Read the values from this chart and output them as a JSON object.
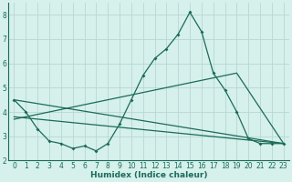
{
  "title": "",
  "xlabel": "Humidex (Indice chaleur)",
  "bg_color": "#d6f0eb",
  "grid_color": "#b8d8d2",
  "line_color": "#1a6b5a",
  "xlim_min": -0.5,
  "xlim_max": 23.5,
  "ylim_min": 2.0,
  "ylim_max": 8.5,
  "yticks": [
    2,
    3,
    4,
    5,
    6,
    7,
    8
  ],
  "xticks": [
    0,
    1,
    2,
    3,
    4,
    5,
    6,
    7,
    8,
    9,
    10,
    11,
    12,
    13,
    14,
    15,
    16,
    17,
    18,
    19,
    20,
    21,
    22,
    23
  ],
  "line1_x": [
    0,
    1,
    2,
    3,
    4,
    5,
    6,
    7,
    8,
    9,
    10,
    11,
    12,
    13,
    14,
    15,
    16,
    17,
    18,
    19,
    20,
    21,
    22,
    23
  ],
  "line1_y": [
    4.5,
    4.0,
    3.3,
    2.8,
    2.7,
    2.5,
    2.6,
    2.4,
    2.7,
    3.5,
    4.5,
    5.5,
    6.2,
    6.6,
    7.2,
    8.1,
    7.3,
    5.6,
    4.9,
    4.0,
    2.9,
    2.7,
    2.7,
    2.7
  ],
  "line2_x": [
    0,
    23
  ],
  "line2_y": [
    4.5,
    2.7
  ],
  "line3_x": [
    0,
    23
  ],
  "line3_y": [
    3.8,
    2.7
  ],
  "line4_x": [
    0,
    19,
    23
  ],
  "line4_y": [
    3.7,
    5.6,
    2.7
  ],
  "tick_fontsize": 5.5,
  "xlabel_fontsize": 6.5,
  "tick_color": "#1a6b5a",
  "spine_color": "#1a6b5a"
}
